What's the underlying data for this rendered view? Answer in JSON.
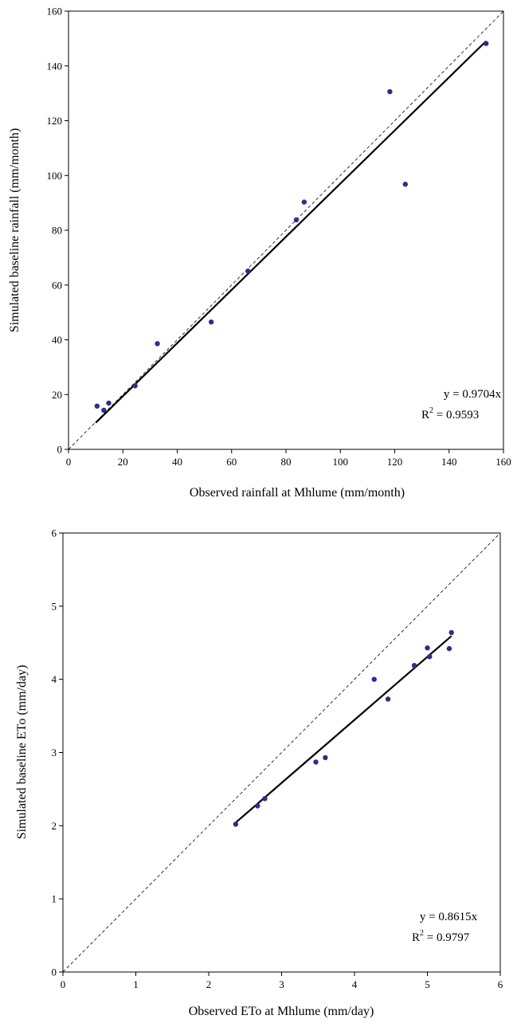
{
  "chart_data": [
    {
      "type": "scatter",
      "xlabel": "Observed rainfall at Mhlume (mm/month)",
      "ylabel": "Simulated baseline rainfall (mm/month)",
      "xlim": [
        0,
        160
      ],
      "ylim": [
        0,
        160
      ],
      "xticks": [
        "0",
        "20",
        "40",
        "60",
        "80",
        "100",
        "120",
        "140",
        "160"
      ],
      "yticks": [
        "0",
        "20",
        "40",
        "60",
        "80",
        "100",
        "120",
        "140",
        "160"
      ],
      "grid": false,
      "points": [
        {
          "x": 10.5,
          "y": 15.8
        },
        {
          "x": 13.0,
          "y": 14.3
        },
        {
          "x": 14.8,
          "y": 16.9
        },
        {
          "x": 24.5,
          "y": 23.2
        },
        {
          "x": 32.7,
          "y": 38.6
        },
        {
          "x": 52.5,
          "y": 46.5
        },
        {
          "x": 66.0,
          "y": 65.1
        },
        {
          "x": 83.8,
          "y": 83.8
        },
        {
          "x": 86.7,
          "y": 90.3
        },
        {
          "x": 118.2,
          "y": 130.6
        },
        {
          "x": 123.9,
          "y": 96.8
        },
        {
          "x": 153.6,
          "y": 148.2
        }
      ],
      "fit_line": {
        "slope": 0.9704,
        "x_start": 10,
        "x_end": 153.6
      },
      "reference_line": {
        "label": "1:1",
        "style": "dashed"
      },
      "equation": "y = 0.9704x",
      "r2_prefix": "R",
      "r2_sup": "2",
      "r2_value": " = 0.9593",
      "annotation_position": "bottom-right"
    },
    {
      "type": "scatter",
      "xlabel": "Observed ETo at Mhlume (mm/day)",
      "ylabel": "Simulated baseline ETo (mm/day)",
      "xlim": [
        0,
        6
      ],
      "ylim": [
        0,
        6
      ],
      "xticks": [
        "0",
        "1",
        "2",
        "3",
        "4",
        "5",
        "6"
      ],
      "yticks": [
        "0",
        "1",
        "2",
        "3",
        "4",
        "5",
        "6"
      ],
      "grid": false,
      "points": [
        {
          "x": 2.37,
          "y": 2.02
        },
        {
          "x": 2.67,
          "y": 2.27
        },
        {
          "x": 2.77,
          "y": 2.37
        },
        {
          "x": 3.47,
          "y": 2.87
        },
        {
          "x": 3.6,
          "y": 2.93
        },
        {
          "x": 4.27,
          "y": 4.0
        },
        {
          "x": 4.46,
          "y": 3.73
        },
        {
          "x": 4.82,
          "y": 4.19
        },
        {
          "x": 5.0,
          "y": 4.43
        },
        {
          "x": 5.03,
          "y": 4.31
        },
        {
          "x": 5.3,
          "y": 4.42
        },
        {
          "x": 5.33,
          "y": 4.64
        }
      ],
      "fit_line": {
        "slope": 0.8615,
        "x_start": 2.35,
        "x_end": 5.33
      },
      "reference_line": {
        "label": "1:1",
        "style": "dashed"
      },
      "equation": "y = 0.8615x",
      "r2_prefix": "R",
      "r2_sup": "2",
      "r2_value": " = 0.9797",
      "annotation_position": "bottom-right"
    }
  ]
}
